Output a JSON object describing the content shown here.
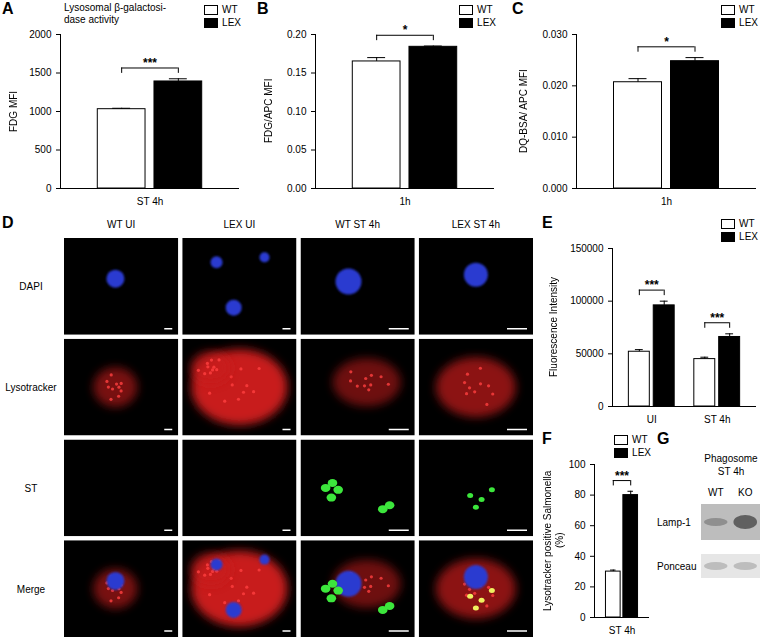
{
  "chart_data": [
    {
      "panel": "A",
      "type": "bar",
      "title": "Lysosomal β-galactosi-\ndase activity",
      "ylabel": "FDG MFI",
      "categories": [
        "ST 4h"
      ],
      "series": [
        {
          "name": "WT",
          "color": "#ffffff",
          "values": [
            1030
          ],
          "errors": [
            12
          ]
        },
        {
          "name": "LEX",
          "color": "#000000",
          "values": [
            1390
          ],
          "errors": [
            35
          ]
        }
      ],
      "significance": [
        "***"
      ],
      "ylim": [
        0,
        2000
      ],
      "yticks": [
        0,
        500,
        1000,
        1500,
        2000
      ],
      "legend": "top-right"
    },
    {
      "panel": "B",
      "type": "bar",
      "ylabel": "FDG/APC MFI",
      "categories": [
        "1h"
      ],
      "series": [
        {
          "name": "WT",
          "color": "#ffffff",
          "values": [
            0.165
          ],
          "errors": [
            0.005
          ]
        },
        {
          "name": "LEX",
          "color": "#000000",
          "values": [
            0.184
          ],
          "errors": [
            0.001
          ]
        }
      ],
      "significance": [
        "*"
      ],
      "ylim": [
        0,
        0.2
      ],
      "yticks": [
        {
          "value": 0,
          "label": "0.00"
        },
        {
          "value": 0.05,
          "label": "0.05"
        },
        {
          "value": 0.1,
          "label": "0.10"
        },
        {
          "value": 0.15,
          "label": "0.15"
        },
        {
          "value": 0.2,
          "label": "0.20"
        }
      ],
      "legend": "top-right"
    },
    {
      "panel": "C",
      "type": "bar",
      "ylabel": "DQ-BSA/ APC MFI",
      "categories": [
        "1h"
      ],
      "series": [
        {
          "name": "WT",
          "color": "#ffffff",
          "values": [
            0.0207
          ],
          "errors": [
            0.0007
          ]
        },
        {
          "name": "LEX",
          "color": "#000000",
          "values": [
            0.0248
          ],
          "errors": [
            0.0007
          ]
        }
      ],
      "significance": [
        "*"
      ],
      "ylim": [
        0,
        0.03
      ],
      "yticks": [
        {
          "value": 0,
          "label": "0.000"
        },
        {
          "value": 0.01,
          "label": "0.010"
        },
        {
          "value": 0.02,
          "label": "0.020"
        },
        {
          "value": 0.03,
          "label": "0.030"
        }
      ],
      "legend": "top-right"
    },
    {
      "panel": "E",
      "type": "bar",
      "ylabel": "Fluorescence Intensity",
      "categories": [
        "UI",
        "ST 4h"
      ],
      "series": [
        {
          "name": "WT",
          "color": "#ffffff",
          "values": [
            52000,
            45000
          ],
          "errors": [
            2000,
            1800
          ]
        },
        {
          "name": "LEX",
          "color": "#000000",
          "values": [
            96000,
            66000
          ],
          "errors": [
            4000,
            3000
          ]
        }
      ],
      "significance": [
        "***",
        "***"
      ],
      "ylim": [
        0,
        150000
      ],
      "yticks": [
        0,
        50000,
        100000,
        150000
      ],
      "legend": "top-right"
    },
    {
      "panel": "F",
      "type": "bar",
      "ylabel": "Lysotracker positive Salmonella (%)",
      "categories": [
        "ST 4h"
      ],
      "series": [
        {
          "name": "WT",
          "color": "#ffffff",
          "values": [
            30
          ],
          "errors": [
            1
          ]
        },
        {
          "name": "LEX",
          "color": "#000000",
          "values": [
            80
          ],
          "errors": [
            2.5
          ]
        }
      ],
      "significance": [
        "***"
      ],
      "ylim": [
        0,
        100
      ],
      "yticks": [
        0,
        20,
        40,
        60,
        80,
        100
      ],
      "legend": "top-right"
    }
  ],
  "image_panels": [
    {
      "panel": "D",
      "type": "micrograph_grid",
      "columns": [
        "WT UI",
        "LEX UI",
        "WT ST 4h",
        "LEX ST 4h"
      ],
      "rows": [
        "DAPI",
        "Lysotracker",
        "ST",
        "Merge"
      ]
    },
    {
      "panel": "G",
      "type": "western_blot",
      "title": "Phagosome\nST 4h",
      "lanes": [
        "WT",
        "KO"
      ],
      "bands": [
        "Lamp-1",
        "Ponceau"
      ]
    }
  ]
}
